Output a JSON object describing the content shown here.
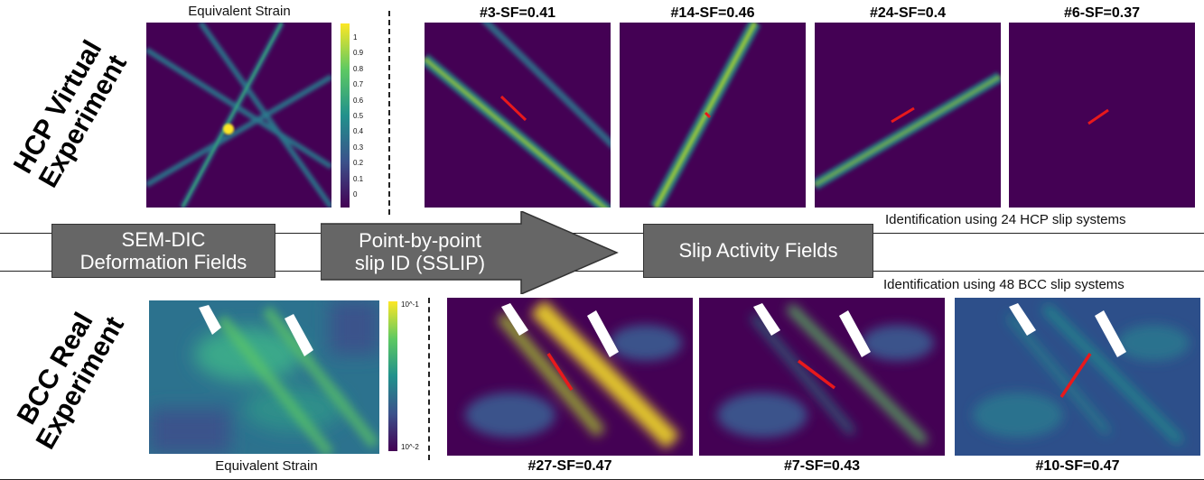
{
  "hcp_title": "HCP Virtual\nExperiment",
  "bcc_title": "BCC Real\nExperiment",
  "hcp_strain_label": "Equivalent Strain",
  "bcc_strain_label": "Equivalent Strain",
  "hcp_panels": [
    "#3-SF=0.41",
    "#14-SF=0.46",
    "#24-SF=0.4",
    "#6-SF=0.37"
  ],
  "bcc_panels": [
    "#27-SF=0.47",
    "#7-SF=0.43",
    "#10-SF=0.47"
  ],
  "hcp_caption": "Identification using 24 HCP slip systems",
  "bcc_caption": "Identification using 48 BCC slip systems",
  "flow": {
    "box1": "SEM-DIC\nDeformation Fields",
    "box2": "Point-by-point\nslip ID (SSLIP)",
    "box3": "Slip Activity Fields"
  },
  "hcp_colorbar_ticks": [
    "1",
    "0.9",
    "0.8",
    "0.7",
    "0.6",
    "0.5",
    "0.4",
    "0.3",
    "0.2",
    "0.1",
    "0"
  ],
  "bcc_colorbar_ticks": [
    "10^-1",
    "10^-2"
  ],
  "colors": {
    "bg_dark": "#440154",
    "teal": "#21918c",
    "green": "#5ec962",
    "yellow": "#fde725",
    "slip_red": "#e8191c",
    "flow_gray": "#666666"
  }
}
